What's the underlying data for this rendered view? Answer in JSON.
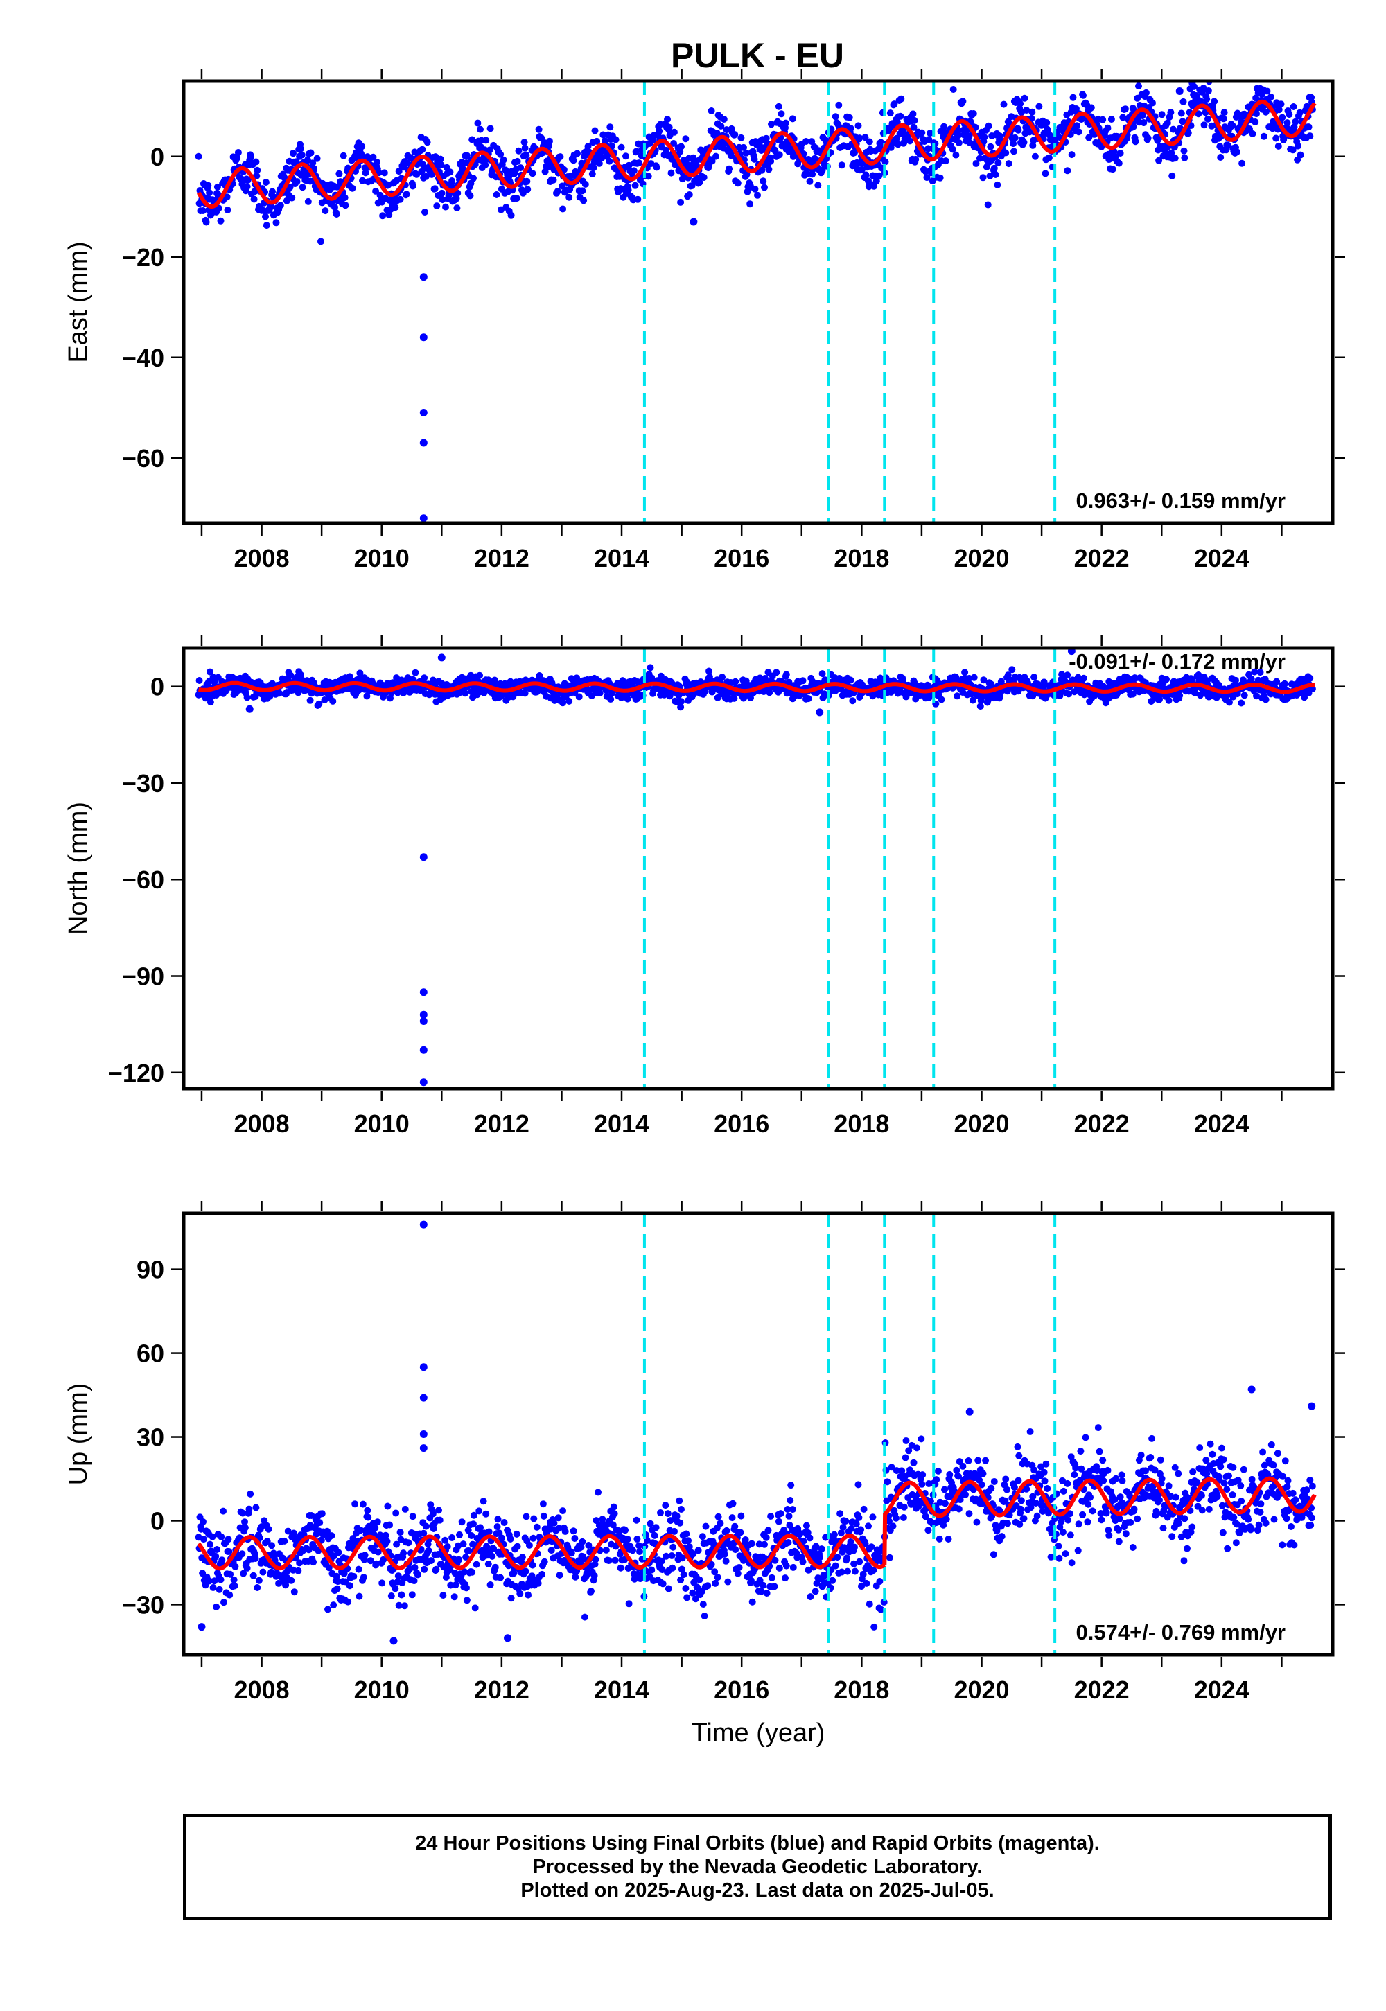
{
  "title": "PULK - EU",
  "chart_data": [
    {
      "type": "scatter",
      "component": "East",
      "ylabel": "East (mm)",
      "xlabel": "",
      "xlim": [
        2006.7,
        2025.85
      ],
      "ylim": [
        -73,
        15
      ],
      "yticks": [
        0,
        -20,
        -40,
        -60
      ],
      "ytick_labels": [
        "0",
        "−20",
        "−40",
        "−60"
      ],
      "xticks": [
        2008,
        2010,
        2012,
        2014,
        2016,
        2018,
        2020,
        2022,
        2024
      ],
      "xtick_labels": [
        "2008",
        "2010",
        "2012",
        "2014",
        "2016",
        "2018",
        "2020",
        "2022",
        "2024"
      ],
      "rate_text": "0.963+/- 0.159 mm/yr",
      "rate_position": "bottom-right",
      "trend": {
        "t0": 2007.0,
        "y0": -6.5,
        "slope": 0.78,
        "amp": 3.6,
        "phase": 0.42
      },
      "scatter_noise": 2.6,
      "outliers": [
        {
          "x": 2010.7,
          "y": -24
        },
        {
          "x": 2010.7,
          "y": -36
        },
        {
          "x": 2010.7,
          "y": -51
        },
        {
          "x": 2010.7,
          "y": -57
        },
        {
          "x": 2010.7,
          "y": -72
        },
        {
          "x": 2015.2,
          "y": -13
        },
        {
          "x": 2023.3,
          "y": 13
        }
      ],
      "breaks": [
        2014.38,
        2017.45,
        2018.38,
        2019.2,
        2021.22
      ]
    },
    {
      "type": "scatter",
      "component": "North",
      "ylabel": "North (mm)",
      "xlabel": "",
      "xlim": [
        2006.7,
        2025.85
      ],
      "ylim": [
        -125,
        12
      ],
      "yticks": [
        0,
        -30,
        -60,
        -90,
        -120
      ],
      "ytick_labels": [
        "0",
        "−30",
        "−60",
        "−90",
        "−120"
      ],
      "xticks": [
        2008,
        2010,
        2012,
        2014,
        2016,
        2018,
        2020,
        2022,
        2024
      ],
      "xtick_labels": [
        "2008",
        "2010",
        "2012",
        "2014",
        "2016",
        "2018",
        "2020",
        "2022",
        "2024"
      ],
      "rate_text": "-0.091+/- 0.172 mm/yr",
      "rate_position": "top-right",
      "trend": {
        "t0": 2007.0,
        "y0": 0.0,
        "slope": -0.03,
        "amp": 1.1,
        "phase": 0.3
      },
      "scatter_noise": 1.6,
      "outliers": [
        {
          "x": 2010.7,
          "y": -53
        },
        {
          "x": 2010.7,
          "y": -95
        },
        {
          "x": 2010.7,
          "y": -102
        },
        {
          "x": 2010.7,
          "y": -104
        },
        {
          "x": 2010.7,
          "y": -113
        },
        {
          "x": 2010.7,
          "y": -123
        },
        {
          "x": 2011.0,
          "y": 9
        },
        {
          "x": 2017.3,
          "y": -8
        },
        {
          "x": 2007.8,
          "y": -7
        },
        {
          "x": 2021.5,
          "y": 11
        }
      ],
      "breaks": [
        2014.38,
        2017.45,
        2018.38,
        2019.2,
        2021.22
      ]
    },
    {
      "type": "scatter",
      "component": "Up",
      "ylabel": "Up (mm)",
      "xlabel": "Time (year)",
      "xlim": [
        2006.7,
        2025.85
      ],
      "ylim": [
        -48,
        110
      ],
      "yticks": [
        90,
        60,
        30,
        0,
        -30
      ],
      "ytick_labels": [
        "90",
        "60",
        "30",
        "0",
        "−30"
      ],
      "xticks": [
        2008,
        2010,
        2012,
        2014,
        2016,
        2018,
        2020,
        2022,
        2024
      ],
      "xtick_labels": [
        "2008",
        "2010",
        "2012",
        "2014",
        "2016",
        "2018",
        "2020",
        "2022",
        "2024"
      ],
      "rate_text": "0.574+/- 0.769 mm/yr",
      "rate_position": "bottom-right",
      "trend_segments": [
        {
          "from": 2006.95,
          "to": 2018.38,
          "t0": 2007.0,
          "y0": -11.5,
          "slope": 0.05,
          "amp": 5.6,
          "phase": 0.55
        },
        {
          "from": 2018.38,
          "to": 2025.55,
          "t0": 2018.38,
          "y0": 7.5,
          "slope": 0.25,
          "amp": 6.0,
          "phase": 0.55
        }
      ],
      "scatter_noise": 7.0,
      "outliers": [
        {
          "x": 2010.7,
          "y": 106
        },
        {
          "x": 2010.7,
          "y": 55
        },
        {
          "x": 2010.7,
          "y": 44
        },
        {
          "x": 2010.7,
          "y": 31
        },
        {
          "x": 2010.7,
          "y": 26
        },
        {
          "x": 2010.2,
          "y": -43
        },
        {
          "x": 2012.1,
          "y": -42
        },
        {
          "x": 2007.0,
          "y": -38
        },
        {
          "x": 2024.5,
          "y": 47
        },
        {
          "x": 2019.8,
          "y": 39
        },
        {
          "x": 2025.5,
          "y": 41
        }
      ],
      "breaks": [
        2014.38,
        2017.45,
        2018.38,
        2019.2,
        2021.22
      ]
    }
  ],
  "colors": {
    "points": "#0000ff",
    "trend": "#ff0000",
    "breaks": "#00e5ee",
    "frame": "#000000"
  },
  "footer": {
    "line1": "24 Hour Positions Using Final Orbits (blue) and Rapid Orbits (magenta).",
    "line2": "Processed by the Nevada Geodetic Laboratory.",
    "line3": "Plotted on 2025-Aug-23. Last data on 2025-Jul-05."
  }
}
